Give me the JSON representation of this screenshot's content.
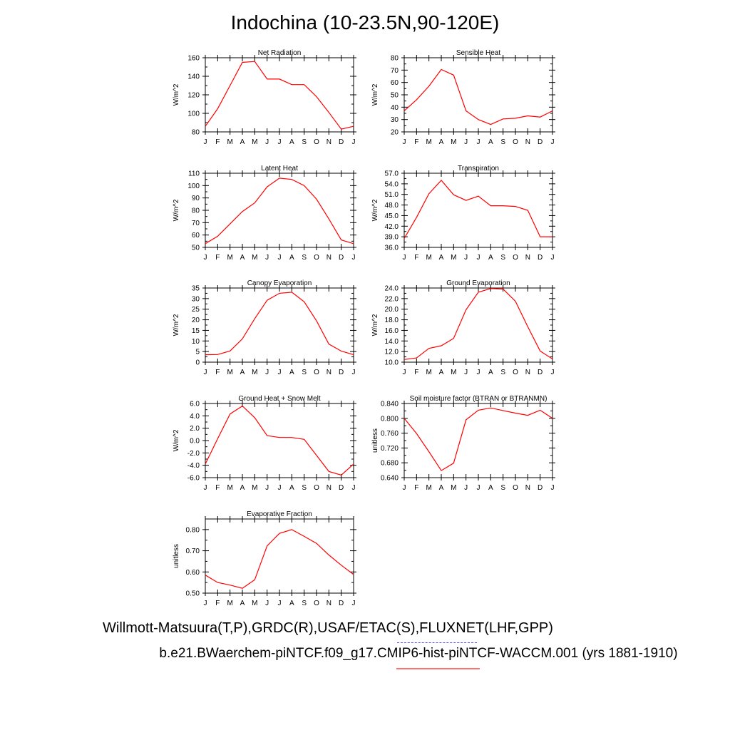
{
  "page": {
    "title": "Indochina (10-23.5N,90-120E)",
    "footer_datasets": "Willmott-Matsuura(T,P),GRDC(R),USAF/ETAC(S),FLUXNET(LHF,GPP)",
    "footer_case": "b.e21.BWaerchem-piNTCF.f09_g17.CMIP6-hist-piNTCF-WACCM.001 (yrs 1881-1910)",
    "line_color": "#ff0000"
  },
  "chart_data": [
    {
      "type": "line",
      "title": "Net Radiation",
      "ylabel": "W/m^2",
      "categories": [
        "J",
        "F",
        "M",
        "A",
        "M",
        "J",
        "J",
        "A",
        "S",
        "O",
        "N",
        "D",
        "J"
      ],
      "values": [
        86,
        105,
        130,
        155,
        156,
        137,
        137,
        131,
        131,
        118,
        101,
        83,
        86
      ],
      "ylim": [
        80,
        160
      ],
      "yticks": [
        80,
        100,
        120,
        140,
        160
      ],
      "ytick_labels": [
        "80",
        "100",
        "120",
        "140",
        "160"
      ]
    },
    {
      "type": "line",
      "title": "Sensible Heat",
      "ylabel": "W/m^2",
      "categories": [
        "J",
        "F",
        "M",
        "A",
        "M",
        "J",
        "J",
        "A",
        "S",
        "O",
        "N",
        "D",
        "J"
      ],
      "values": [
        37,
        46,
        57,
        70.5,
        66,
        37,
        30,
        26,
        30.5,
        31,
        33,
        32,
        37
      ],
      "ylim": [
        20,
        80
      ],
      "yticks": [
        20,
        30,
        40,
        50,
        60,
        70,
        80
      ],
      "ytick_labels": [
        "20",
        "30",
        "40",
        "50",
        "60",
        "70",
        "80"
      ]
    },
    {
      "type": "line",
      "title": "Latent Heat",
      "ylabel": "W/m^2",
      "categories": [
        "J",
        "F",
        "M",
        "A",
        "M",
        "J",
        "J",
        "A",
        "S",
        "O",
        "N",
        "D",
        "J"
      ],
      "values": [
        53,
        59,
        69,
        79,
        86,
        99,
        106,
        105,
        100,
        89,
        73,
        56,
        53
      ],
      "ylim": [
        50,
        110
      ],
      "yticks": [
        50,
        60,
        70,
        80,
        90,
        100,
        110
      ],
      "ytick_labels": [
        "50",
        "60",
        "70",
        "80",
        "90",
        "100",
        "110"
      ]
    },
    {
      "type": "line",
      "title": "Transpiration",
      "ylabel": "W/m^2",
      "categories": [
        "J",
        "F",
        "M",
        "A",
        "M",
        "J",
        "J",
        "A",
        "S",
        "O",
        "N",
        "D",
        "J"
      ],
      "values": [
        38.5,
        44.5,
        51.2,
        55,
        50.9,
        49.3,
        50.5,
        47.8,
        47.8,
        47.6,
        46.5,
        39,
        39
      ],
      "ylim": [
        36,
        57
      ],
      "yticks": [
        36,
        39,
        42,
        45,
        48,
        51,
        54,
        57
      ],
      "ytick_labels": [
        "36.0",
        "39.0",
        "42.0",
        "45.0",
        "48.0",
        "51.0",
        "54.0",
        "57.0"
      ]
    },
    {
      "type": "line",
      "title": "Canopy Evaporation",
      "ylabel": "W/m^2",
      "categories": [
        "J",
        "F",
        "M",
        "A",
        "M",
        "J",
        "J",
        "A",
        "S",
        "O",
        "N",
        "D",
        "J"
      ],
      "values": [
        3.5,
        3.6,
        5.3,
        11,
        20.5,
        29.2,
        32.5,
        33,
        28.5,
        19.5,
        8.5,
        5.2,
        3.5
      ],
      "ylim": [
        0,
        35
      ],
      "yticks": [
        0,
        5,
        10,
        15,
        20,
        25,
        30,
        35
      ],
      "ytick_labels": [
        "0",
        "5",
        "10",
        "15",
        "20",
        "25",
        "30",
        "35"
      ]
    },
    {
      "type": "line",
      "title": "Ground Evaporation",
      "ylabel": "W/m^2",
      "categories": [
        "J",
        "F",
        "M",
        "A",
        "M",
        "J",
        "J",
        "A",
        "S",
        "O",
        "N",
        "D",
        "J"
      ],
      "values": [
        10.5,
        10.8,
        12.6,
        13.1,
        14.5,
        19.9,
        23.2,
        23.9,
        23.8,
        21.5,
        16.7,
        12.1,
        10.6
      ],
      "ylim": [
        10,
        24
      ],
      "yticks": [
        10,
        12,
        14,
        16,
        18,
        20,
        22,
        24
      ],
      "ytick_labels": [
        "10.0",
        "12.0",
        "14.0",
        "16.0",
        "18.0",
        "20.0",
        "22.0",
        "24.0"
      ]
    },
    {
      "type": "line",
      "title": "Ground Heat + Snow Melt",
      "ylabel": "W/m^2",
      "categories": [
        "J",
        "F",
        "M",
        "A",
        "M",
        "J",
        "J",
        "A",
        "S",
        "O",
        "N",
        "D",
        "J"
      ],
      "values": [
        -3.8,
        0.3,
        4.3,
        5.6,
        3.7,
        0.8,
        0.5,
        0.5,
        0.2,
        -2.4,
        -5,
        -5.6,
        -3.8
      ],
      "ylim": [
        -6,
        6
      ],
      "yticks": [
        -6,
        -4,
        -2,
        0,
        2,
        4,
        6
      ],
      "ytick_labels": [
        "-6.0",
        "-4.0",
        "-2.0",
        "0.0",
        "2.0",
        "4.0",
        "6.0"
      ]
    },
    {
      "type": "line",
      "title": "Soil moisture factor (BTRAN or BTRANMN)",
      "ylabel": "unitless",
      "categories": [
        "J",
        "F",
        "M",
        "A",
        "M",
        "J",
        "J",
        "A",
        "S",
        "O",
        "N",
        "D",
        "J"
      ],
      "values": [
        0.8,
        0.759,
        0.71,
        0.659,
        0.679,
        0.796,
        0.822,
        0.828,
        0.821,
        0.814,
        0.808,
        0.822,
        0.8
      ],
      "ylim": [
        0.64,
        0.84
      ],
      "yticks": [
        0.64,
        0.68,
        0.72,
        0.76,
        0.8,
        0.84
      ],
      "ytick_labels": [
        "0.640",
        "0.680",
        "0.720",
        "0.760",
        "0.800",
        "0.840"
      ]
    },
    {
      "type": "line",
      "title": "Evaporative Fraction",
      "ylabel": "unitless",
      "categories": [
        "J",
        "F",
        "M",
        "A",
        "M",
        "J",
        "J",
        "A",
        "S",
        "O",
        "N",
        "D",
        "J"
      ],
      "values": [
        0.585,
        0.55,
        0.538,
        0.523,
        0.563,
        0.723,
        0.782,
        0.8,
        0.768,
        0.735,
        0.68,
        0.632,
        0.588
      ],
      "ylim": [
        0.5,
        0.85
      ],
      "yticks": [
        0.5,
        0.6,
        0.7,
        0.8
      ],
      "ytick_labels": [
        "0.50",
        "0.60",
        "0.70",
        "0.80"
      ]
    }
  ]
}
